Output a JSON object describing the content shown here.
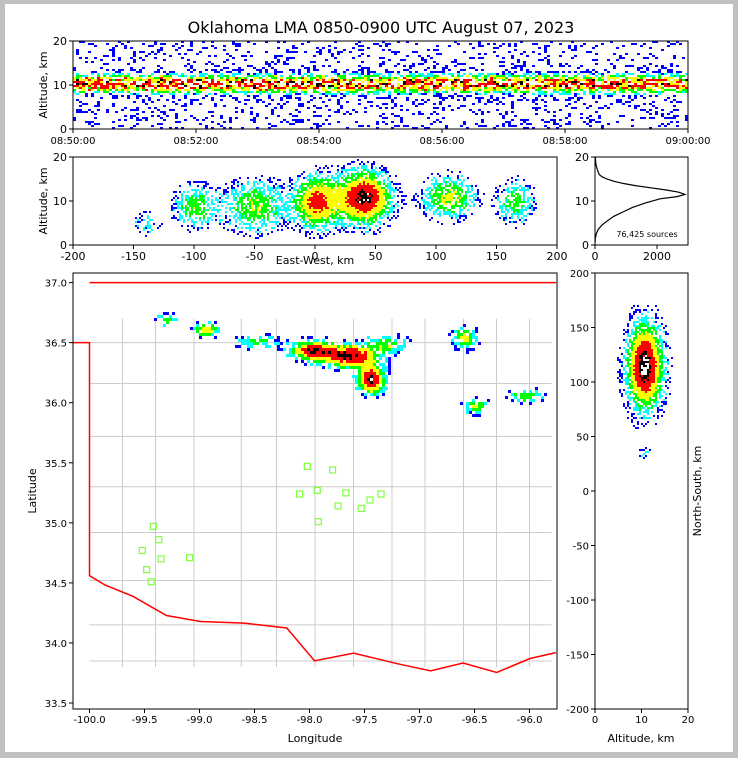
{
  "chart_data": {
    "title": "Oklahoma LMA 0850-0900 UTC August 07, 2023",
    "colors": {
      "background": "#ffffff",
      "frame": "#c0c0c0",
      "state_border": "#ff0000",
      "county_lines": "#cccccc",
      "stations": "#80ff40",
      "source_colors": [
        "#0000ff",
        "#00ffff",
        "#00ff00",
        "#ffff00",
        "#ff0000",
        "#000000",
        "#ffffff"
      ]
    },
    "panels": [
      {
        "id": "time-altitude",
        "type": "scatter-density",
        "xlabel": "",
        "ylabel": "Altitude, km",
        "x_ticks": [
          "08:50:00",
          "08:52:00",
          "08:54:00",
          "08:56:00",
          "08:58:00",
          "09:00:00"
        ],
        "y_ticks": [
          0,
          10,
          20
        ],
        "ylim": [
          0,
          20
        ],
        "xlim": [
          "08:50:00",
          "09:00:00"
        ]
      },
      {
        "id": "ew-altitude",
        "type": "scatter-density",
        "xlabel": "East-West, km",
        "ylabel": "Altitude, km",
        "x_ticks": [
          -200,
          -150,
          -100,
          -50,
          0,
          50,
          100,
          150,
          200
        ],
        "y_ticks": [
          0,
          10,
          20
        ],
        "xlim": [
          -200,
          200
        ],
        "ylim": [
          0,
          20
        ]
      },
      {
        "id": "altitude-histogram",
        "type": "line",
        "x_ticks": [
          0,
          2000
        ],
        "y_ticks": [
          0,
          10,
          20
        ],
        "xlim": [
          0,
          3000
        ],
        "ylim": [
          0,
          20
        ],
        "annotation": "76,425 sources",
        "series": [
          {
            "x": [
              0,
              10,
              40,
              100,
              220,
              400,
              600,
              900,
              1200,
              1600,
              2100,
              2650,
              2900,
              2700,
              2300,
              1800,
              1300,
              900,
              600,
              380,
              230,
              140,
              80,
              40,
              20,
              10
            ],
            "y": [
              0.5,
              1.5,
              2.5,
              3.5,
              4.5,
              5.5,
              6.5,
              7.5,
              8.5,
              9.5,
              10.5,
              11.0,
              11.5,
              12.0,
              12.5,
              13.0,
              13.5,
              14.0,
              14.5,
              15.0,
              15.5,
              16.0,
              17.0,
              18.0,
              19.0,
              20.0
            ]
          }
        ]
      },
      {
        "id": "plan-view",
        "type": "map-scatter",
        "xlabel": "Longitude",
        "ylabel": "Latitude",
        "x_ticks": [
          -100.0,
          -99.5,
          -99.0,
          -98.5,
          -98.0,
          -97.5,
          -97.0,
          -96.5,
          -96.0
        ],
        "x_tick_labels": [
          "-100.0",
          "-99.5",
          "-99.0",
          "-98.5",
          "-98.0",
          "-97.5",
          "-97.0",
          "-96.5",
          "-96.0"
        ],
        "y_ticks": [
          33.5,
          34.0,
          34.5,
          35.0,
          35.5,
          36.0,
          36.5,
          37.0
        ],
        "y_tick_labels": [
          "33.5",
          "34.0",
          "34.5",
          "35.0",
          "35.5",
          "36.0",
          "36.5",
          "37.0"
        ],
        "xlim": [
          -100.15,
          -95.75
        ],
        "ylim": [
          33.45,
          37.08
        ],
        "stations": [
          {
            "lon": -99.42,
            "lat": 34.97
          },
          {
            "lon": -99.37,
            "lat": 34.86
          },
          {
            "lon": -99.52,
            "lat": 34.77
          },
          {
            "lon": -99.35,
            "lat": 34.7
          },
          {
            "lon": -99.48,
            "lat": 34.61
          },
          {
            "lon": -99.44,
            "lat": 34.51
          },
          {
            "lon": -99.09,
            "lat": 34.71
          },
          {
            "lon": -98.02,
            "lat": 35.47
          },
          {
            "lon": -97.79,
            "lat": 35.44
          },
          {
            "lon": -98.09,
            "lat": 35.24
          },
          {
            "lon": -97.93,
            "lat": 35.27
          },
          {
            "lon": -97.67,
            "lat": 35.25
          },
          {
            "lon": -97.35,
            "lat": 35.24
          },
          {
            "lon": -97.45,
            "lat": 35.19
          },
          {
            "lon": -97.74,
            "lat": 35.14
          },
          {
            "lon": -97.53,
            "lat": 35.12
          },
          {
            "lon": -97.92,
            "lat": 35.01
          }
        ]
      },
      {
        "id": "altitude-ns",
        "type": "scatter-density",
        "xlabel": "Altitude, km",
        "ylabel": "North-South, km",
        "x_ticks": [
          0,
          10,
          20
        ],
        "y_ticks": [
          200,
          150,
          100,
          50,
          0,
          -50,
          -100,
          -150,
          -200
        ],
        "xlim": [
          0,
          20
        ],
        "ylim": [
          -200,
          200
        ]
      }
    ]
  }
}
